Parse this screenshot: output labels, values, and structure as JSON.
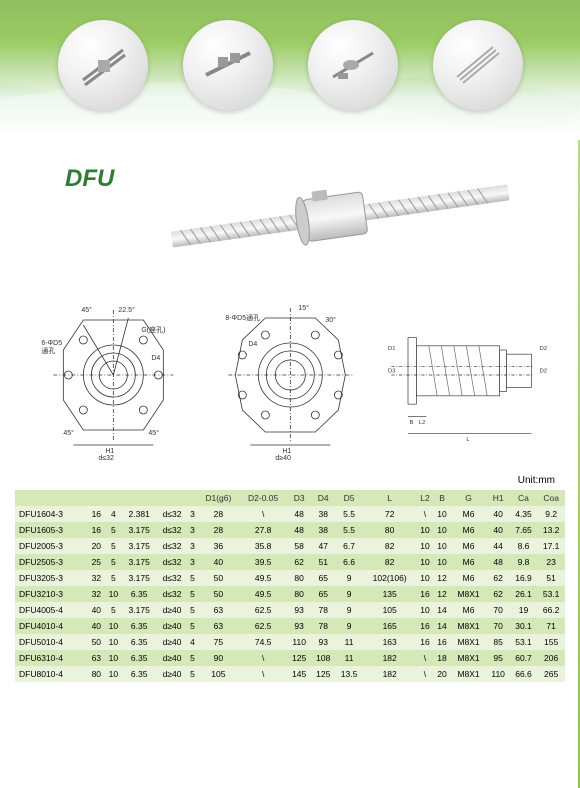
{
  "title": "DFU",
  "unit_label": "Unit:mm",
  "header": {
    "bg_gradient_top": "#7cb342",
    "bg_gradient_bottom": "#ffffff",
    "circle_count": 4
  },
  "diagrams": {
    "angles": {
      "a1": "45°",
      "a2": "22.5°",
      "a3": "45°",
      "a4": "45°",
      "a5": "15°",
      "a6": "30°"
    },
    "labels": {
      "d5": "6-ΦD5",
      "d5b": "8-ΦD5通孔",
      "thru": "通孔",
      "d4": "D4",
      "d1": "D1",
      "d3": "D3",
      "d2": "D2",
      "h1": "H1",
      "l": "L",
      "l2": "L2",
      "b": "B",
      "g": "G(座孔)",
      "cond1": "d≤32",
      "cond2": "d≥40"
    }
  },
  "table": {
    "columns": [
      "",
      "",
      "",
      "",
      "",
      "",
      "D1(g6)",
      "D2-0.05",
      "D3",
      "D4",
      "D5",
      "L",
      "L2",
      "B",
      "G",
      "H1",
      "Ca",
      "Coa"
    ],
    "rows": [
      [
        "DFU1604-3",
        "16",
        "4",
        "2.381",
        "d≤32",
        "3",
        "28",
        "\\",
        "48",
        "38",
        "5.5",
        "72",
        "\\",
        "10",
        "M6",
        "40",
        "4.35",
        "9.2"
      ],
      [
        "DFU1605-3",
        "16",
        "5",
        "3.175",
        "d≤32",
        "3",
        "28",
        "27.8",
        "48",
        "38",
        "5.5",
        "80",
        "10",
        "10",
        "M6",
        "40",
        "7.65",
        "13.2"
      ],
      [
        "DFU2005-3",
        "20",
        "5",
        "3.175",
        "d≤32",
        "3",
        "36",
        "35.8",
        "58",
        "47",
        "6.7",
        "82",
        "10",
        "10",
        "M6",
        "44",
        "8.6",
        "17.1"
      ],
      [
        "DFU2505-3",
        "25",
        "5",
        "3.175",
        "d≤32",
        "3",
        "40",
        "39.5",
        "62",
        "51",
        "6.6",
        "82",
        "10",
        "10",
        "M6",
        "48",
        "9.8",
        "23"
      ],
      [
        "DFU3205-3",
        "32",
        "5",
        "3.175",
        "d≤32",
        "5",
        "50",
        "49.5",
        "80",
        "65",
        "9",
        "102(106)",
        "10",
        "12",
        "M6",
        "62",
        "16.9",
        "51"
      ],
      [
        "DFU3210-3",
        "32",
        "10",
        "6.35",
        "d≤32",
        "5",
        "50",
        "49.5",
        "80",
        "65",
        "9",
        "135",
        "16",
        "12",
        "M8X1",
        "62",
        "26.1",
        "53.1"
      ],
      [
        "DFU4005-4",
        "40",
        "5",
        "3.175",
        "d≥40",
        "5",
        "63",
        "62.5",
        "93",
        "78",
        "9",
        "105",
        "10",
        "14",
        "M6",
        "70",
        "19",
        "66.2"
      ],
      [
        "DFU4010-4",
        "40",
        "10",
        "6.35",
        "d≥40",
        "5",
        "63",
        "62.5",
        "93",
        "78",
        "9",
        "165",
        "16",
        "14",
        "M8X1",
        "70",
        "30.1",
        "71"
      ],
      [
        "DFU5010-4",
        "50",
        "10",
        "6.35",
        "d≥40",
        "4",
        "75",
        "74.5",
        "110",
        "93",
        "11",
        "163",
        "16",
        "16",
        "M8X1",
        "85",
        "53.1",
        "155"
      ],
      [
        "DFU6310-4",
        "63",
        "10",
        "6.35",
        "d≥40",
        "5",
        "90",
        "\\",
        "125",
        "108",
        "11",
        "182",
        "\\",
        "18",
        "M8X1",
        "95",
        "60.7",
        "206"
      ],
      [
        "DFU8010-4",
        "80",
        "10",
        "6.35",
        "d≥40",
        "5",
        "105",
        "\\",
        "145",
        "125",
        "13.5",
        "182",
        "\\",
        "20",
        "M8X1",
        "110",
        "66.6",
        "265"
      ]
    ],
    "header_bg": "#d4e8b8",
    "row_odd_bg": "#eaf3dc",
    "row_even_bg": "#d4e8b8",
    "font_size": 8.5
  }
}
